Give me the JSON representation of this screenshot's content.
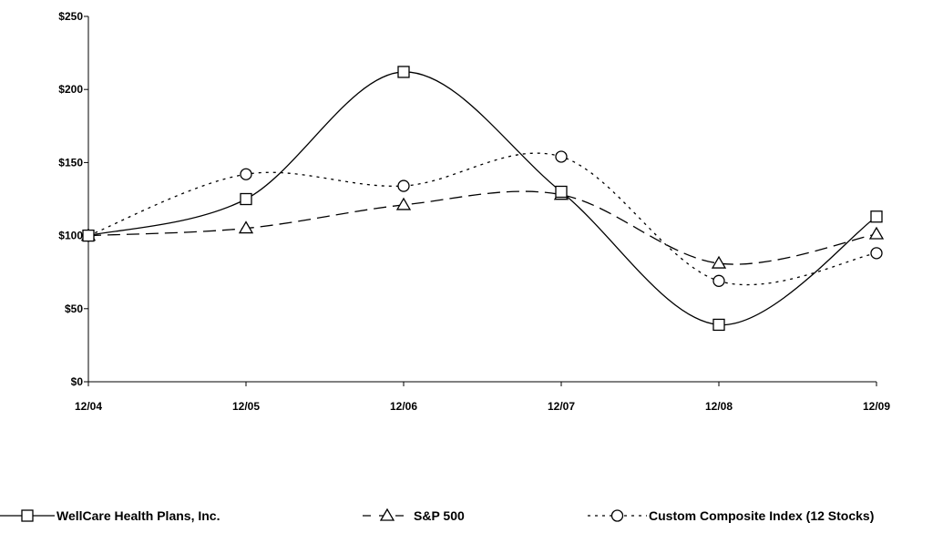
{
  "chart_data": {
    "type": "line",
    "title": "",
    "xlabel": "",
    "ylabel": "",
    "categories": [
      "12/04",
      "12/05",
      "12/06",
      "12/07",
      "12/08",
      "12/09"
    ],
    "ylim": [
      0,
      250
    ],
    "y_ticks": [
      0,
      50,
      100,
      150,
      200,
      250
    ],
    "y_tick_labels": [
      "$0",
      "$50",
      "$100",
      "$150",
      "$200",
      "$250"
    ],
    "grid": false,
    "legend_position": "bottom",
    "series": [
      {
        "name": "WellCare Health Plans, Inc.",
        "values": [
          100,
          125,
          212,
          130,
          39,
          113
        ],
        "marker": "square",
        "dash": "solid"
      },
      {
        "name": "S&P 500",
        "values": [
          100,
          105,
          121,
          128,
          81,
          101
        ],
        "marker": "triangle",
        "dash": "dashed"
      },
      {
        "name": "Custom Composite Index (12 Stocks)",
        "values": [
          100,
          142,
          134,
          154,
          69,
          88
        ],
        "marker": "circle",
        "dash": "dotted"
      }
    ],
    "colors": {
      "line": "#000000",
      "axis": "#000000",
      "background": "#ffffff"
    }
  }
}
